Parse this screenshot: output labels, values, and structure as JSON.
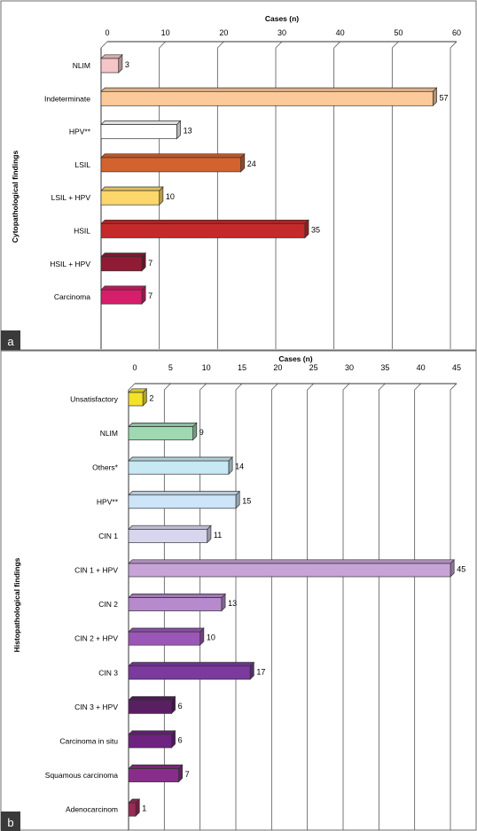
{
  "chart_data": [
    {
      "type": "bar",
      "orientation": "horizontal",
      "panel_label": "a",
      "title": "Cases (n)",
      "ylabel": "Cytopathological findings",
      "xlim": [
        0,
        60
      ],
      "xticks": [
        0,
        10,
        20,
        30,
        40,
        50,
        60
      ],
      "grid": true,
      "categories": [
        "NLIM",
        "Indeterminate",
        "HPV**",
        "LSIL",
        "LSIL + HPV",
        "HSIL",
        "HSIL + HPV",
        "Carcinoma"
      ],
      "values": [
        3,
        57,
        13,
        24,
        10,
        35,
        7,
        7
      ],
      "colors": [
        "#f6c5c8",
        "#fbc99a",
        "#ffffff",
        "#d2632e",
        "#fdd76a",
        "#c42a2a",
        "#8e1c34",
        "#d51f6a"
      ]
    },
    {
      "type": "bar",
      "orientation": "horizontal",
      "panel_label": "b",
      "title": "Cases (n)",
      "ylabel": "Histopathological findings",
      "xlim": [
        0,
        45
      ],
      "xticks": [
        0,
        5,
        10,
        15,
        20,
        25,
        30,
        35,
        40,
        45
      ],
      "grid": true,
      "categories": [
        "Unsatisfactory",
        "NLIM",
        "Others*",
        "HPV**",
        "CIN 1",
        "CIN 1 + HPV",
        "CIN 2",
        "CIN 2 + HPV",
        "CIN 3",
        "CIN 3 + HPV",
        "Carcinoma in situ",
        "Squamous carcinoma",
        "Adenocarcinom"
      ],
      "values": [
        2,
        9,
        14,
        15,
        11,
        45,
        13,
        10,
        17,
        6,
        6,
        7,
        1
      ],
      "colors": [
        "#f4e22a",
        "#9fd9b1",
        "#c7e9f3",
        "#cde5f8",
        "#d6d6ee",
        "#c7a3d7",
        "#b68acc",
        "#9a57b5",
        "#7b3a9e",
        "#5a1f63",
        "#6e2380",
        "#8a2c8a",
        "#9a2a57"
      ]
    }
  ]
}
